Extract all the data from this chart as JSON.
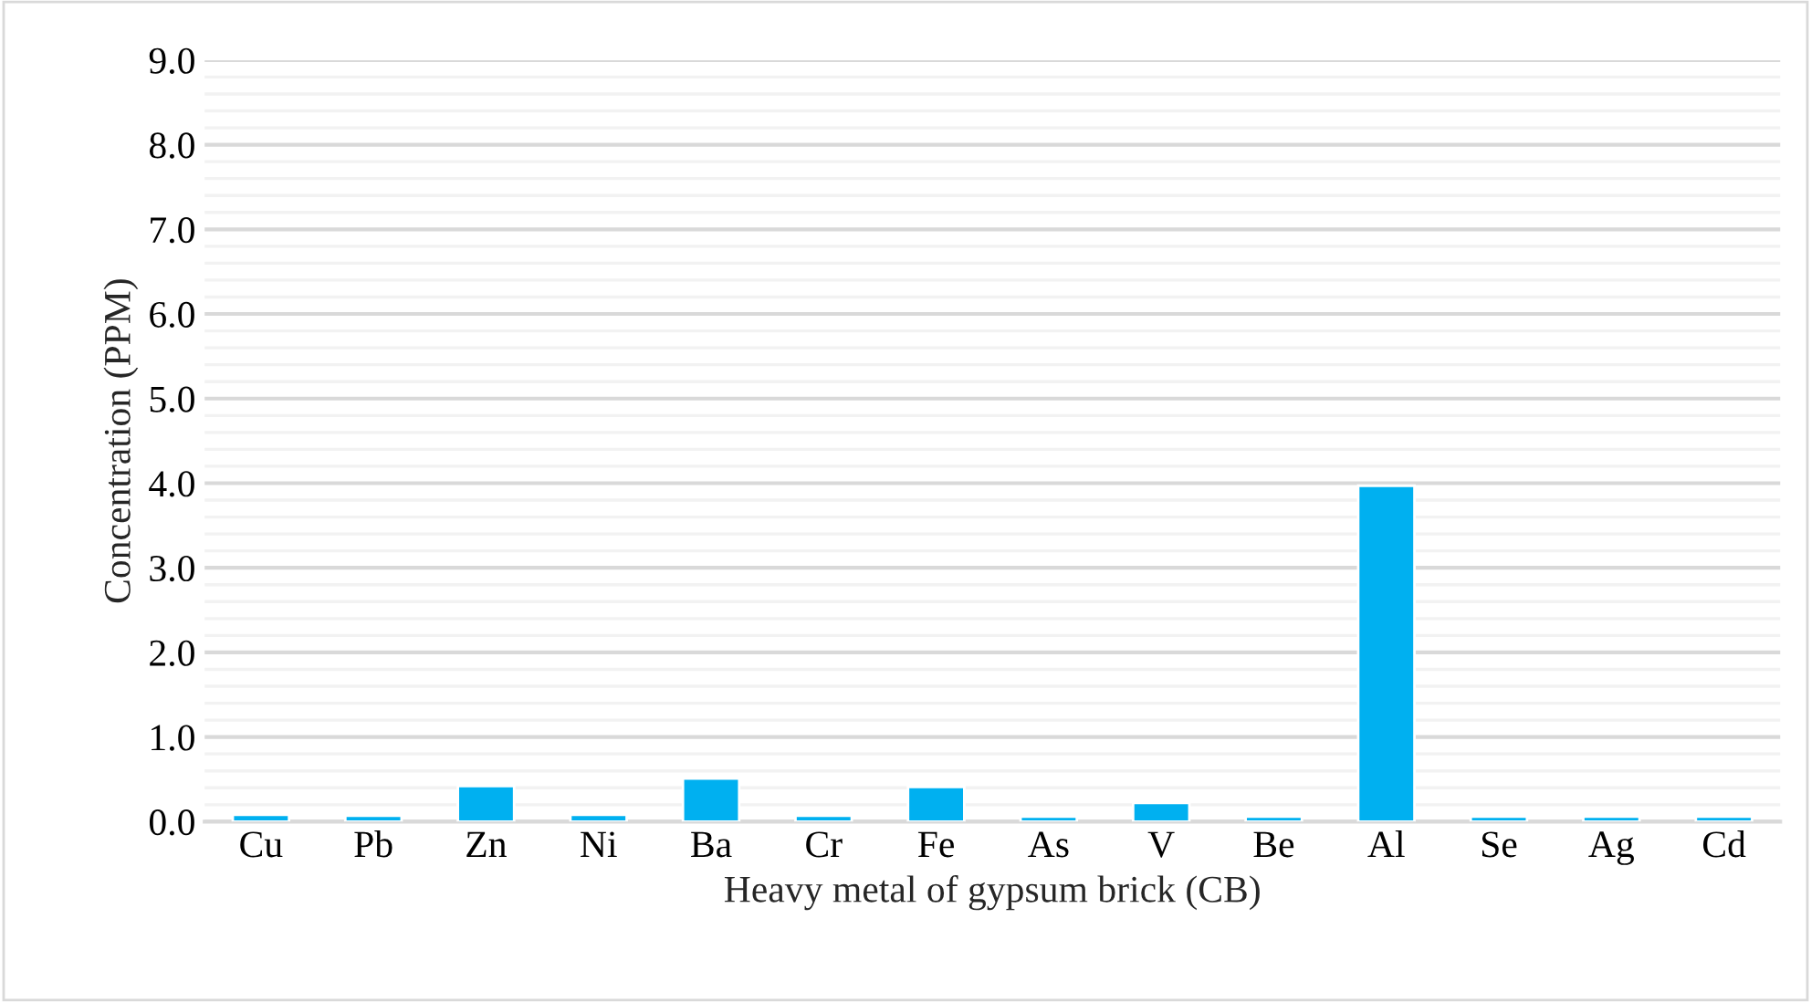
{
  "chart_data": {
    "type": "bar",
    "xlabel": "Heavy metal of gypsum brick (CB)",
    "ylabel": "Concentration (PPM)",
    "categories": [
      "Cu",
      "Pb",
      "Zn",
      "Ni",
      "Ba",
      "Cr",
      "Fe",
      "As",
      "V",
      "Be",
      "Al",
      "Se",
      "Ag",
      "Cd"
    ],
    "values": [
      0.08,
      0.07,
      0.42,
      0.08,
      0.51,
      0.07,
      0.41,
      0.06,
      0.22,
      0.06,
      3.97,
      0.06,
      0.06,
      0.06
    ],
    "color": "#00b0f0",
    "ylim": [
      0,
      9
    ],
    "yticks": [
      {
        "value": 0,
        "label": "0.0"
      },
      {
        "value": 0.2,
        "label": null
      },
      {
        "value": 0.4,
        "label": null
      },
      {
        "value": 0.6,
        "label": null
      },
      {
        "value": 0.8,
        "label": null
      },
      {
        "value": 1,
        "label": "1.0"
      },
      {
        "value": 1.2,
        "label": null
      },
      {
        "value": 1.4,
        "label": null
      },
      {
        "value": 1.6,
        "label": null
      },
      {
        "value": 1.8,
        "label": null
      },
      {
        "value": 2,
        "label": "2.0"
      },
      {
        "value": 2.2,
        "label": null
      },
      {
        "value": 2.4,
        "label": null
      },
      {
        "value": 2.6,
        "label": null
      },
      {
        "value": 2.8,
        "label": null
      },
      {
        "value": 3,
        "label": "3.0"
      },
      {
        "value": 3.2,
        "label": null
      },
      {
        "value": 3.4,
        "label": null
      },
      {
        "value": 3.6,
        "label": null
      },
      {
        "value": 3.8,
        "label": null
      },
      {
        "value": 4,
        "label": "4.0"
      },
      {
        "value": 4.2,
        "label": null
      },
      {
        "value": 4.4,
        "label": null
      },
      {
        "value": 4.6,
        "label": null
      },
      {
        "value": 4.8,
        "label": null
      },
      {
        "value": 5,
        "label": "5.0"
      },
      {
        "value": 5.2,
        "label": null
      },
      {
        "value": 5.4,
        "label": null
      },
      {
        "value": 5.6,
        "label": null
      },
      {
        "value": 5.8,
        "label": null
      },
      {
        "value": 6,
        "label": "6.0"
      },
      {
        "value": 6.2,
        "label": null
      },
      {
        "value": 6.4,
        "label": null
      },
      {
        "value": 6.6,
        "label": null
      },
      {
        "value": 6.8,
        "label": null
      },
      {
        "value": 7,
        "label": "7.0"
      },
      {
        "value": 7.2,
        "label": null
      },
      {
        "value": 7.4,
        "label": null
      },
      {
        "value": 7.6,
        "label": null
      },
      {
        "value": 7.8,
        "label": null
      },
      {
        "value": 8,
        "label": "8.0"
      },
      {
        "value": 8.2,
        "label": null
      },
      {
        "value": 8.4,
        "label": null
      },
      {
        "value": 8.6,
        "label": null
      },
      {
        "value": 8.8,
        "label": null
      },
      {
        "value": 9,
        "label": "9.0"
      }
    ],
    "grid": "y",
    "legend": false
  }
}
